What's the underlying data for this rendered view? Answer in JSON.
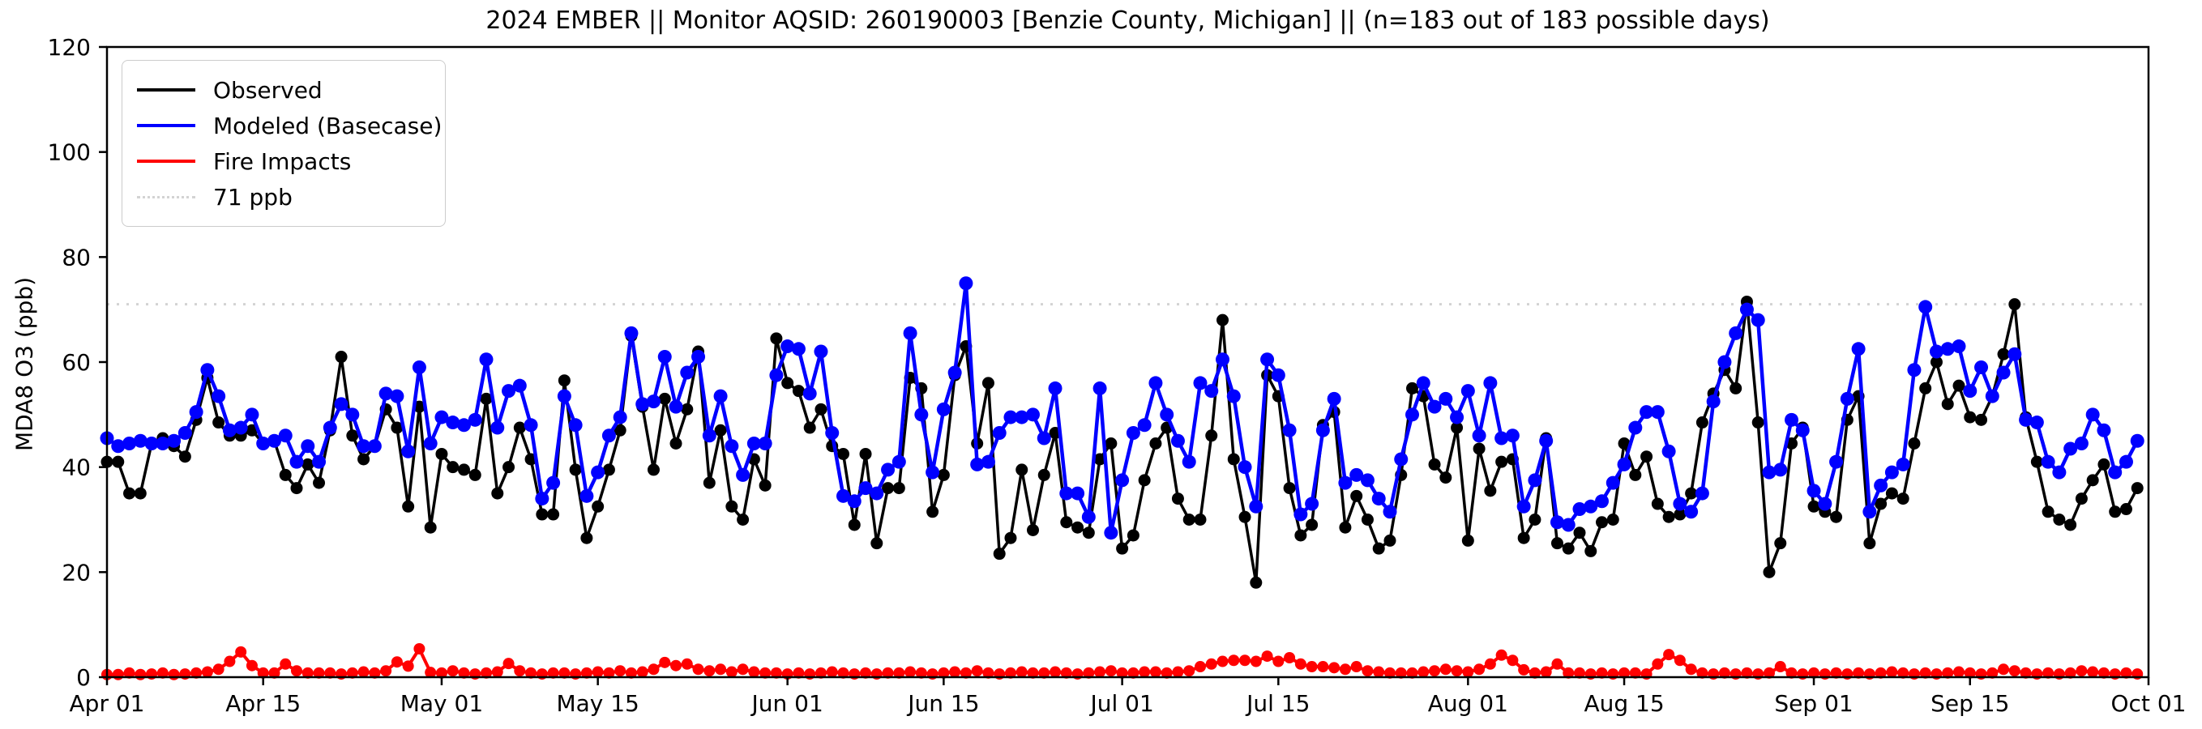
{
  "title": "2024 EMBER || Monitor AQSID: 260190003 [Benzie County, Michigan] || (n=183 out of 183 possible days)",
  "y_axis": {
    "label": "MDA8 O3 (ppb)",
    "ticks": [
      0,
      20,
      40,
      60,
      80,
      100,
      120
    ],
    "limit": [
      0,
      120
    ]
  },
  "x_axis": {
    "tick_labels": [
      "Apr 01",
      "Apr 15",
      "May 01",
      "May 15",
      "Jun 01",
      "Jun 15",
      "Jul 01",
      "Jul 15",
      "Aug 01",
      "Aug 15",
      "Sep 01",
      "Sep 15",
      "Oct 01"
    ],
    "tick_days": [
      0,
      14,
      30,
      44,
      61,
      75,
      91,
      105,
      122,
      136,
      153,
      167,
      183
    ],
    "span_days": 183
  },
  "legend": {
    "items": [
      {
        "label": "Observed",
        "color": "#000000",
        "style": "solid"
      },
      {
        "label": "Modeled (Basecase)",
        "color": "#0000ff",
        "style": "solid"
      },
      {
        "label": "Fire Impacts",
        "color": "#ff0000",
        "style": "solid"
      },
      {
        "label": "71 ppb",
        "color": "#d3d3d3",
        "style": "dotted"
      }
    ]
  },
  "reference_line": {
    "value": 71,
    "label": "71 ppb",
    "color": "#d3d3d3"
  },
  "chart_data": {
    "type": "line",
    "title": "2024 EMBER || Monitor AQSID: 260190003 [Benzie County, Michigan] || (n=183 out of 183 possible days)",
    "xlabel": "",
    "ylabel": "MDA8 O3 (ppb)",
    "ylim": [
      0,
      120
    ],
    "grid": false,
    "legend_position": "upper left",
    "x_start_date": "2024-04-01",
    "x_end_date": "2024-09-30",
    "n_points": 183,
    "reference_value": 71,
    "series": [
      {
        "name": "Observed",
        "color": "#000000",
        "marker": "circle",
        "values": [
          41,
          41,
          35,
          35,
          44.5,
          45.5,
          44,
          42,
          49,
          57,
          48.5,
          46,
          46,
          47,
          44.5,
          45,
          38.5,
          36,
          40.5,
          37,
          47,
          61,
          46,
          41.5,
          44,
          51,
          47.5,
          32.5,
          51.5,
          28.5,
          42.5,
          40,
          39.5,
          38.5,
          53,
          35,
          40,
          47.5,
          41.5,
          31,
          31,
          56.5,
          39.5,
          26.5,
          32.5,
          39.5,
          47,
          65,
          51.5,
          39.5,
          53,
          44.5,
          51,
          62,
          37,
          47,
          32.5,
          30,
          41.5,
          36.5,
          64.5,
          56,
          54.5,
          47.5,
          51,
          44,
          42.5,
          29,
          42.5,
          25.5,
          36,
          36,
          57,
          55,
          31.5,
          38.5,
          57.5,
          63,
          44.5,
          56,
          23.5,
          26.5,
          39.5,
          28,
          38.5,
          46.5,
          29.5,
          28.5,
          27.5,
          41.5,
          44.5,
          24.5,
          27,
          37.5,
          44.5,
          47.5,
          34,
          30,
          30,
          46,
          68,
          41.5,
          30.5,
          18,
          57.5,
          53.5,
          36,
          27,
          29,
          48,
          50.5,
          28.5,
          34.5,
          30,
          24.5,
          26,
          38.5,
          55,
          53.5,
          40.5,
          38,
          47.5,
          26,
          43.5,
          35.5,
          41,
          41.5,
          26.5,
          30,
          45.5,
          25.5,
          24.5,
          27.5,
          24,
          29.5,
          30,
          44.5,
          38.5,
          42,
          33,
          30.5,
          31,
          35,
          48.5,
          54,
          58.5,
          55,
          71.5,
          48.5,
          20,
          25.5,
          44.5,
          47.5,
          32.5,
          31.5,
          30.5,
          49,
          53.5,
          25.5,
          33,
          35,
          34,
          44.5,
          55,
          60,
          52,
          55.5,
          49.5,
          49,
          53.5,
          61.5,
          71,
          49.5,
          41,
          31.5,
          30,
          29,
          34,
          37.5,
          40.5,
          31.5,
          32,
          36
        ]
      },
      {
        "name": "Modeled (Basecase)",
        "color": "#0000ff",
        "marker": "circle",
        "values": [
          45.5,
          44,
          44.5,
          45,
          44.5,
          44.5,
          45,
          46.5,
          50.5,
          58.5,
          53.5,
          47,
          47.5,
          50,
          44.5,
          45,
          46,
          41,
          44,
          41,
          47.5,
          52,
          50,
          44,
          44,
          54,
          53.5,
          43,
          59,
          44.5,
          49.5,
          48.5,
          48,
          49,
          60.5,
          47.5,
          54.5,
          55.5,
          48,
          34,
          37,
          53.5,
          48,
          34.5,
          39,
          46,
          49.5,
          65.5,
          52,
          52.5,
          61,
          51.5,
          58,
          61,
          46,
          53.5,
          44,
          38.5,
          44.5,
          44.5,
          57.5,
          63,
          62.5,
          54,
          62,
          46.5,
          34.5,
          33.5,
          36,
          35,
          39.5,
          41,
          65.5,
          50,
          39,
          51,
          58,
          75,
          40.5,
          41,
          46.5,
          49.5,
          49.5,
          50,
          45.5,
          55,
          35,
          35,
          30.5,
          55,
          27.5,
          37.5,
          46.5,
          48,
          56,
          50,
          45,
          41,
          56,
          54.5,
          60.5,
          53.5,
          40,
          32.5,
          60.5,
          57.5,
          47,
          31,
          33,
          47,
          53,
          37,
          38.5,
          37.5,
          34,
          31.5,
          41.5,
          50,
          56,
          51.5,
          53,
          49.5,
          54.5,
          46,
          56,
          45.5,
          46,
          32.5,
          37.5,
          45,
          29.5,
          29,
          32,
          32.5,
          33.5,
          37,
          40.5,
          47.5,
          50.5,
          50.5,
          43,
          33,
          31.5,
          35,
          52.5,
          60,
          65.5,
          70,
          68,
          39,
          39.5,
          49,
          47,
          35.5,
          33,
          41,
          53,
          62.5,
          31.5,
          36.5,
          39,
          40.5,
          58.5,
          70.5,
          62,
          62.5,
          63,
          54.5,
          59,
          53.5,
          58,
          61.5,
          49,
          48.5,
          41,
          39,
          43.5,
          44.5,
          50,
          47,
          39,
          41,
          45
        ]
      },
      {
        "name": "Fire Impacts",
        "color": "#ff0000",
        "marker": "circle",
        "values": [
          0.5,
          0.5,
          0.8,
          0.5,
          0.6,
          0.8,
          0.5,
          0.6,
          0.8,
          1,
          1.5,
          3,
          4.8,
          2.2,
          0.8,
          0.8,
          2.5,
          1.2,
          0.8,
          0.8,
          0.8,
          0.6,
          0.8,
          1,
          0.8,
          1.2,
          2.9,
          2.1,
          5.4,
          0.9,
          0.8,
          1.2,
          0.8,
          0.6,
          0.8,
          1,
          2.6,
          1.2,
          0.8,
          0.6,
          0.8,
          0.8,
          0.6,
          0.8,
          1,
          0.8,
          1.2,
          0.8,
          1,
          1.5,
          2.8,
          2.2,
          2.5,
          1.5,
          1.2,
          1.5,
          1,
          1.5,
          1,
          0.8,
          0.8,
          0.6,
          0.8,
          0.6,
          0.8,
          1,
          0.8,
          0.6,
          0.8,
          0.6,
          0.8,
          0.8,
          1,
          0.8,
          0.6,
          0.8,
          1,
          0.8,
          1.2,
          0.8,
          0.6,
          0.8,
          1,
          0.8,
          0.8,
          1,
          0.8,
          0.6,
          0.8,
          1,
          1.2,
          0.8,
          0.8,
          1,
          1,
          0.8,
          1,
          1.2,
          2,
          2.5,
          3,
          3.2,
          3.2,
          3,
          4,
          3,
          3.7,
          2.5,
          2,
          2,
          1.8,
          1.5,
          2,
          1.2,
          1,
          0.8,
          0.8,
          0.8,
          1,
          1.2,
          1.5,
          1.2,
          1,
          1.5,
          2.5,
          4.2,
          3.2,
          1.4,
          0.8,
          1,
          2.5,
          0.8,
          0.8,
          0.6,
          0.8,
          0.6,
          0.8,
          0.8,
          0.6,
          2.5,
          4.3,
          3.2,
          1.5,
          0.8,
          0.6,
          0.8,
          0.6,
          0.8,
          0.6,
          0.8,
          2,
          0.8,
          0.6,
          0.8,
          0.6,
          0.8,
          0.6,
          0.8,
          0.6,
          0.8,
          1,
          0.8,
          0.6,
          0.8,
          0.6,
          0.8,
          1,
          0.8,
          0.6,
          0.8,
          1.5,
          1.2,
          0.8,
          0.6,
          0.8,
          0.6,
          0.8,
          1.2,
          1,
          0.8,
          0.6,
          0.8,
          0.6
        ]
      }
    ]
  }
}
